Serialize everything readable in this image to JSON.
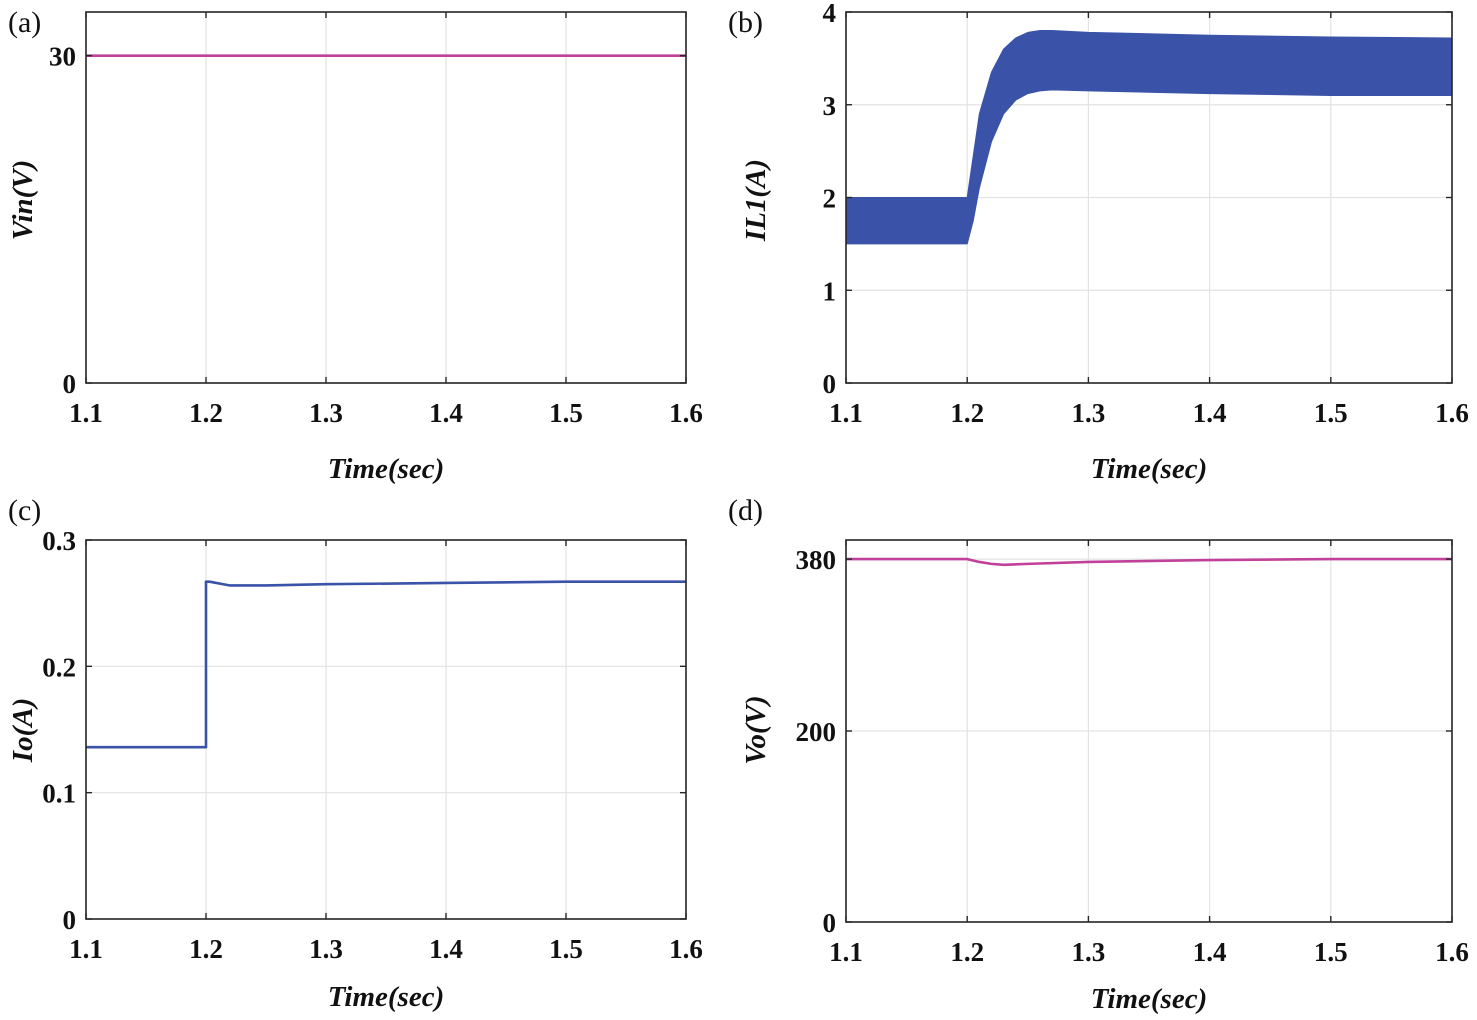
{
  "chart_data": [
    {
      "panel": "(a)",
      "type": "line",
      "title": "",
      "xlabel": "Time(sec)",
      "ylabel": "Vin(V)",
      "xlim": [
        1.1,
        1.6
      ],
      "ylim": [
        0,
        34
      ],
      "xticks": [
        1.1,
        1.2,
        1.3,
        1.4,
        1.5,
        1.6
      ],
      "xtick_labels": [
        "1.1",
        "1.2",
        "1.3",
        "1.4",
        "1.5",
        "1.6"
      ],
      "yticks": [
        0,
        30
      ],
      "ytick_labels": [
        "0",
        "30"
      ],
      "grid": true,
      "color": "#c0409a",
      "series": [
        {
          "name": "Vin",
          "x": [
            1.1,
            1.6
          ],
          "values": [
            30,
            30
          ]
        }
      ]
    },
    {
      "panel": "(b)",
      "type": "area",
      "title": "",
      "xlabel": "Time(sec)",
      "ylabel": "IL1(A)",
      "xlim": [
        1.1,
        1.6
      ],
      "ylim": [
        0,
        4
      ],
      "xticks": [
        1.1,
        1.2,
        1.3,
        1.4,
        1.5,
        1.6
      ],
      "xtick_labels": [
        "1.1",
        "1.2",
        "1.3",
        "1.4",
        "1.5",
        "1.6"
      ],
      "yticks": [
        0,
        1,
        2,
        3,
        4
      ],
      "ytick_labels": [
        "0",
        "1",
        "2",
        "3",
        "4"
      ],
      "grid": true,
      "color": "#3a52a8",
      "series": [
        {
          "name": "IL1 max",
          "x": [
            1.1,
            1.2,
            1.205,
            1.21,
            1.22,
            1.23,
            1.24,
            1.25,
            1.26,
            1.27,
            1.3,
            1.4,
            1.5,
            1.6
          ],
          "values": [
            2.0,
            2.0,
            2.45,
            2.9,
            3.35,
            3.6,
            3.72,
            3.78,
            3.8,
            3.8,
            3.78,
            3.75,
            3.73,
            3.72
          ]
        },
        {
          "name": "IL1 min",
          "x": [
            1.1,
            1.2,
            1.205,
            1.21,
            1.22,
            1.23,
            1.24,
            1.25,
            1.26,
            1.27,
            1.3,
            1.4,
            1.5,
            1.6
          ],
          "values": [
            1.5,
            1.5,
            1.75,
            2.1,
            2.6,
            2.9,
            3.05,
            3.12,
            3.15,
            3.16,
            3.15,
            3.12,
            3.1,
            3.1
          ]
        }
      ]
    },
    {
      "panel": "(c)",
      "type": "line",
      "title": "",
      "xlabel": "Time(sec)",
      "ylabel": "Io(A)",
      "xlim": [
        1.1,
        1.6
      ],
      "ylim": [
        0,
        0.3
      ],
      "xticks": [
        1.1,
        1.2,
        1.3,
        1.4,
        1.5,
        1.6
      ],
      "xtick_labels": [
        "1.1",
        "1.2",
        "1.3",
        "1.4",
        "1.5",
        "1.6"
      ],
      "yticks": [
        0,
        0.1,
        0.2,
        0.3
      ],
      "ytick_labels": [
        "0",
        "0.1",
        "0.2",
        "0.3"
      ],
      "grid": true,
      "color": "#3a52a8",
      "series": [
        {
          "name": "Io",
          "x": [
            1.1,
            1.2,
            1.2,
            1.203,
            1.22,
            1.25,
            1.3,
            1.4,
            1.5,
            1.6
          ],
          "values": [
            0.136,
            0.136,
            0.267,
            0.267,
            0.264,
            0.264,
            0.265,
            0.266,
            0.267,
            0.267
          ]
        }
      ]
    },
    {
      "panel": "(d)",
      "type": "line",
      "title": "",
      "xlabel": "Time(sec)",
      "ylabel": "Vo(V)",
      "xlim": [
        1.1,
        1.6
      ],
      "ylim": [
        0,
        400
      ],
      "xticks": [
        1.1,
        1.2,
        1.3,
        1.4,
        1.5,
        1.6
      ],
      "xtick_labels": [
        "1.1",
        "1.2",
        "1.3",
        "1.4",
        "1.5",
        "1.6"
      ],
      "yticks": [
        0,
        200,
        380
      ],
      "ytick_labels": [
        "0",
        "200",
        "380"
      ],
      "grid": true,
      "color": "#c0409a",
      "series": [
        {
          "name": "Vo",
          "x": [
            1.1,
            1.2,
            1.21,
            1.22,
            1.23,
            1.25,
            1.3,
            1.4,
            1.5,
            1.6
          ],
          "values": [
            380,
            380,
            377,
            375,
            374,
            375,
            377,
            379,
            380,
            380
          ]
        }
      ]
    }
  ]
}
